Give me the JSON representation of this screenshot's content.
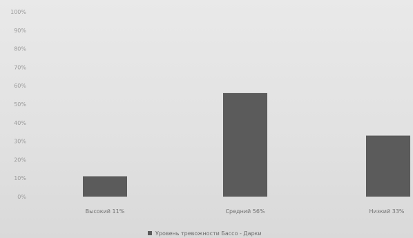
{
  "chart_data": {
    "type": "bar",
    "categories": [
      "Высокий 11%",
      "Средний 56%",
      "Низкий 33%"
    ],
    "values": [
      11,
      56,
      33
    ],
    "ylim": [
      0,
      100
    ],
    "yticks": [
      "0%",
      "10%",
      "20%",
      "30%",
      "40%",
      "50%",
      "60%",
      "70%",
      "80%",
      "90%",
      "100%"
    ],
    "grid": false,
    "legend": {
      "position": "bottom",
      "label": "Уровень тревожности Бассо - Дарки"
    },
    "colors": {
      "bar": "#5b5b5b",
      "legend_marker": "#5b5b5b"
    }
  }
}
